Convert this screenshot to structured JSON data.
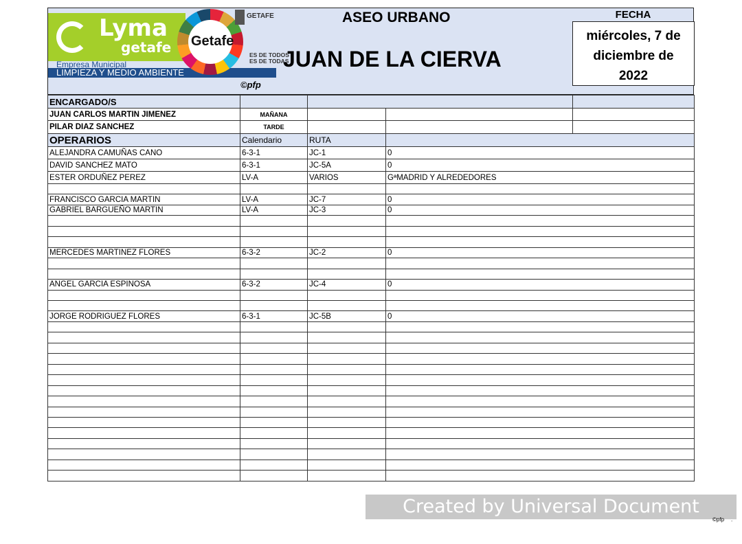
{
  "header": {
    "logo_lyma": "Lyma",
    "logo_getafe_sub": "getafe",
    "empresa": "Empresa Municipal",
    "department": "LIMPIEZA Y MEDIO AMBIENTE",
    "getafe_logo": "Getafe",
    "ayuntamiento": "GETAFE",
    "slogan_1": "ES DE TODOS",
    "slogan_2": "ES DE TODAS",
    "copyright": "©pfp",
    "service": "ASEO URBANO",
    "zone": "JUAN DE LA CIERVA",
    "fecha_label": "FECHA",
    "fecha_value": "miércoles, 7 de diciembre de 2022"
  },
  "encargados": {
    "title": "ENCARGADO/S",
    "rows": [
      {
        "name": "JUAN CARLOS MARTIN JIMENEZ",
        "turno": "MAÑANA"
      },
      {
        "name": "PILAR DIAZ SANCHEZ",
        "turno": "TARDE"
      }
    ]
  },
  "operarios": {
    "title": "OPERARIOS",
    "col_calendario": "Calendario",
    "col_ruta": "RUTA",
    "rows": [
      [
        "ALEJANDRA CAMUÑAS CANO",
        "6-3-1",
        "JC-1",
        "0"
      ],
      [
        "DAVID SANCHEZ MATO",
        "6-3-1",
        "JC-5A",
        "0"
      ],
      [
        "ESTER ORDUÑEZ PEREZ",
        "LV-A",
        "VARIOS",
        "GªMADRID Y ALREDEDORES"
      ],
      [
        "",
        "",
        "",
        ""
      ],
      [
        "FRANCISCO GARCIA MARTIN",
        "LV-A",
        "JC-7",
        "0"
      ],
      [
        "GABRIEL BARGUEÑO MARTIN",
        "LV-A",
        "JC-3",
        "0"
      ],
      [
        "",
        "",
        "",
        ""
      ],
      [
        "",
        "",
        "",
        ""
      ],
      [
        "",
        "",
        "",
        ""
      ],
      [
        "MERCEDES MARTINEZ FLORES",
        "6-3-2",
        "JC-2",
        "0"
      ],
      [
        "",
        "",
        "",
        ""
      ],
      [
        "",
        "",
        "",
        ""
      ],
      [
        "ANGEL GARCIA ESPINOSA",
        "6-3-2",
        "JC-4",
        "0"
      ],
      [
        "",
        "",
        "",
        ""
      ],
      [
        "",
        "",
        "",
        ""
      ],
      [
        "JORGE RODRIGUEZ FLORES",
        "6-3-1",
        "JC-5B",
        "0"
      ],
      [
        "",
        "",
        "",
        ""
      ],
      [
        "",
        "",
        "",
        ""
      ],
      [
        "",
        "",
        "",
        ""
      ],
      [
        "",
        "",
        "",
        ""
      ],
      [
        "",
        "",
        "",
        ""
      ],
      [
        "",
        "",
        "",
        ""
      ],
      [
        "",
        "",
        "",
        ""
      ],
      [
        "",
        "",
        "",
        ""
      ],
      [
        "",
        "",
        "",
        ""
      ],
      [
        "",
        "",
        "",
        ""
      ],
      [
        "",
        "",
        "",
        ""
      ],
      [
        "",
        "",
        "",
        ""
      ],
      [
        "",
        "",
        "",
        ""
      ],
      [
        "",
        "",
        "",
        ""
      ],
      [
        "",
        "",
        "",
        ""
      ]
    ]
  },
  "footer": {
    "watermark": "Created by Universal Document Converter",
    "copyright": "©pfp",
    "dot": "."
  }
}
